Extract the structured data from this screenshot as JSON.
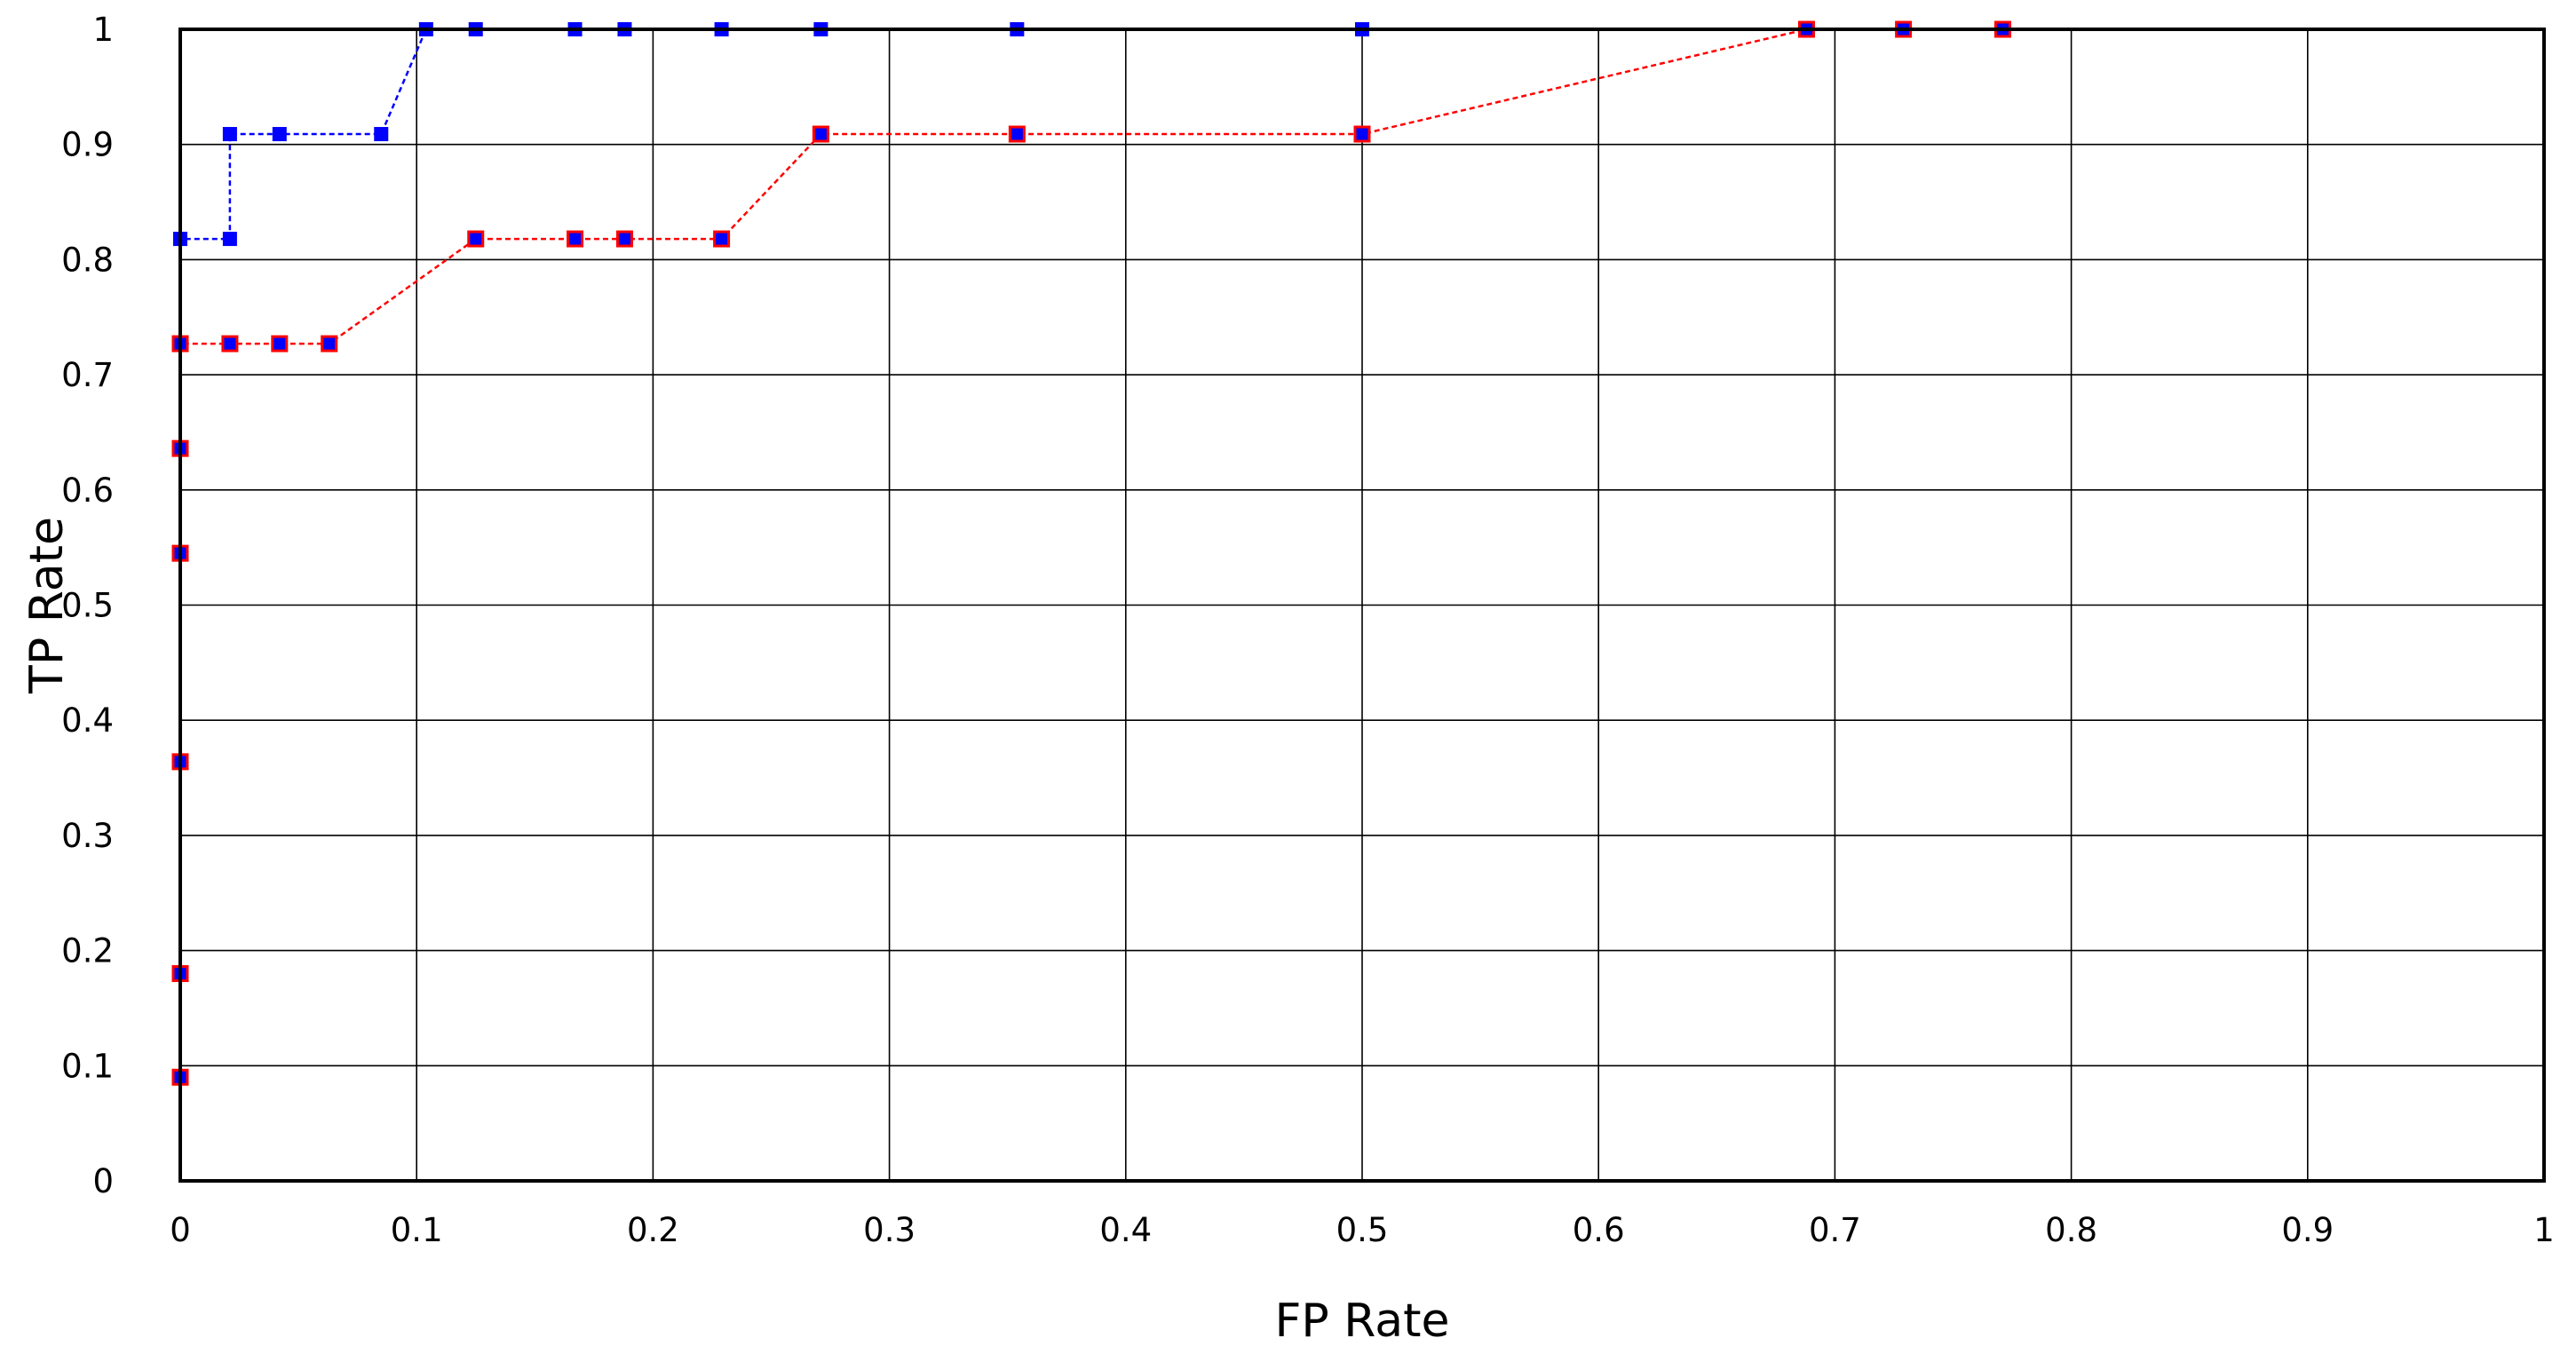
{
  "chart_data": {
    "type": "line",
    "title": "",
    "xlabel": "FP Rate",
    "ylabel": "TP Rate",
    "xlim": [
      0,
      1
    ],
    "ylim": [
      0,
      1
    ],
    "grid": true,
    "legend": "none",
    "x_ticks": [
      "0",
      "0.1",
      "0.2",
      "0.3",
      "0.4",
      "0.5",
      "0.6",
      "0.7",
      "0.8",
      "0.9",
      "1"
    ],
    "y_ticks": [
      "0",
      "0.1",
      "0.2",
      "0.3",
      "0.4",
      "0.5",
      "0.6",
      "0.7",
      "0.8",
      "0.9",
      "1"
    ],
    "series": [
      {
        "color": "#0000ff",
        "marker_color": "#0000ff",
        "line_style": "dashed",
        "points": [
          [
            0,
            0.09
          ],
          [
            0,
            0.18
          ],
          [
            0,
            0.364
          ],
          [
            0,
            0.545
          ],
          [
            0,
            0.636
          ],
          [
            0,
            0.727
          ],
          [
            0,
            0.818
          ],
          [
            0.021,
            0.818
          ],
          [
            0.021,
            0.909
          ],
          [
            0.042,
            0.909
          ],
          [
            0.085,
            0.909
          ],
          [
            0.104,
            1.0
          ],
          [
            0.125,
            1.0
          ],
          [
            0.167,
            1.0
          ],
          [
            0.188,
            1.0
          ],
          [
            0.229,
            1.0
          ],
          [
            0.271,
            1.0
          ],
          [
            0.354,
            1.0
          ],
          [
            0.5,
            1.0
          ],
          [
            0.688,
            1.0
          ],
          [
            0.729,
            1.0
          ],
          [
            0.771,
            1.0
          ]
        ]
      },
      {
        "color": "#ff0000",
        "marker_color": "#0000ff",
        "marker_edge": "#ff0000",
        "line_style": "dashed",
        "points": [
          [
            0,
            0.09
          ],
          [
            0,
            0.18
          ],
          [
            0,
            0.364
          ],
          [
            0,
            0.545
          ],
          [
            0,
            0.636
          ],
          [
            0,
            0.727
          ],
          [
            0.021,
            0.727
          ],
          [
            0.042,
            0.727
          ],
          [
            0.063,
            0.727
          ],
          [
            0.125,
            0.818
          ],
          [
            0.167,
            0.818
          ],
          [
            0.188,
            0.818
          ],
          [
            0.229,
            0.818
          ],
          [
            0.271,
            0.909
          ],
          [
            0.354,
            0.909
          ],
          [
            0.5,
            0.909
          ],
          [
            0.688,
            1.0
          ],
          [
            0.729,
            1.0
          ],
          [
            0.771,
            1.0
          ]
        ]
      }
    ]
  }
}
